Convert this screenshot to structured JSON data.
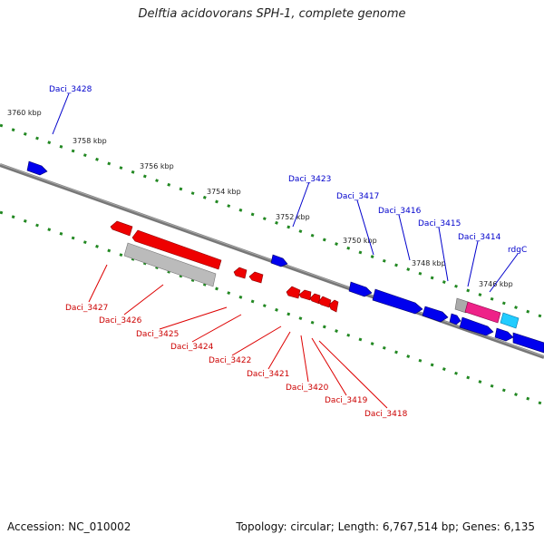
{
  "title": "Delftia acidovorans SPH-1, complete genome",
  "footer": {
    "accession": "Accession: NC_010002",
    "info": "Topology: circular; Length: 6,767,514 bp; Genes: 6,135"
  },
  "colors": {
    "forward_gene": "#0000ee",
    "reverse_gene": "#ee0000",
    "pseudo_gene": "#aaaaaa",
    "highlight_gene": "#ee2288",
    "rna_gene": "#22ccff",
    "backbone": "#777777",
    "tick": "#228822"
  },
  "ruler_labels": [
    "3760 kbp",
    "3758 kbp",
    "3756 kbp",
    "3754 kbp",
    "3752 kbp",
    "3750 kbp",
    "3748 kbp",
    "3746 kbp"
  ],
  "gene_labels_top": [
    "Daci_3428",
    "Daci_3423",
    "Daci_3417",
    "Daci_3416",
    "Daci_3415",
    "Daci_3414",
    "rdgC"
  ],
  "gene_labels_bottom": [
    "Daci_3427",
    "Daci_3426",
    "Daci_3425",
    "Daci_3424",
    "Daci_3422",
    "Daci_3421",
    "Daci_3420",
    "Daci_3419",
    "Daci_3418"
  ]
}
